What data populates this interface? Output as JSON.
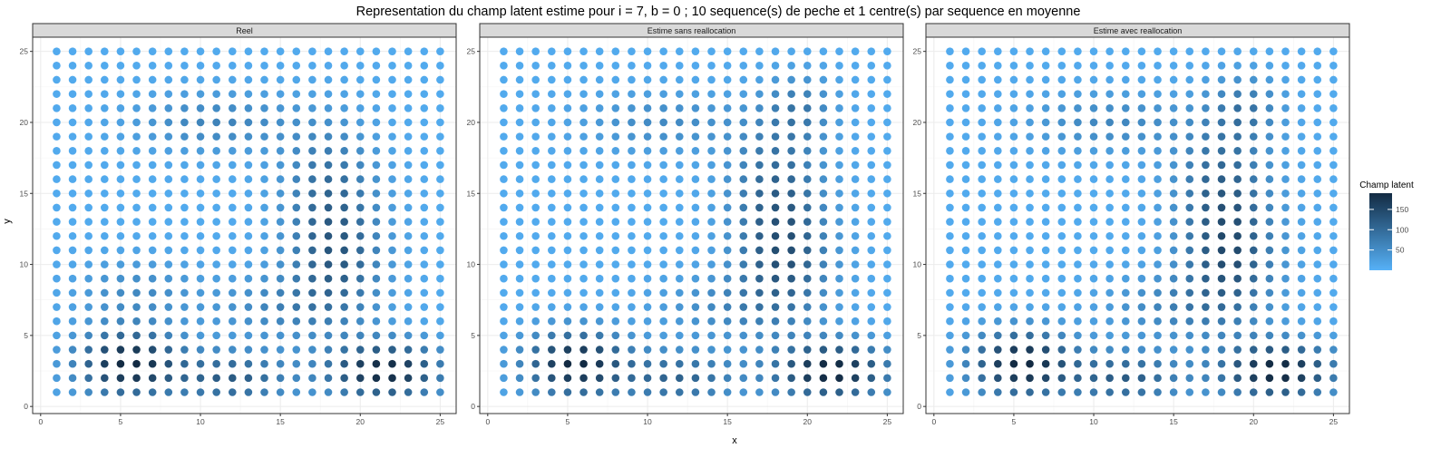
{
  "title": "Representation du champ latent estime pour i = 7, b = 0 ; 10 sequence(s) de peche et 1 centre(s) par sequence en moyenne",
  "xlabel": "x",
  "ylabel": "y",
  "legend": {
    "title": "Champ latent",
    "ticks": [
      50,
      100,
      150
    ],
    "placement": "right"
  },
  "colors": {
    "low": "#56B1F7",
    "high": "#132B43",
    "panel_bg": "#FFFFFF",
    "strip_bg": "#D9D9D9",
    "grid": "#EBEBEB"
  },
  "chart_data": {
    "type": "scatter",
    "facets": [
      "Reel",
      "Estime sans reallocation",
      "Estime avec reallocation"
    ],
    "x_range": [
      1,
      25
    ],
    "y_range": [
      1,
      25
    ],
    "xlim": [
      -0.5,
      26
    ],
    "ylim": [
      -0.5,
      26
    ],
    "x_ticks": [
      0,
      5,
      10,
      15,
      20,
      25
    ],
    "y_ticks": [
      0,
      5,
      10,
      15,
      20,
      25
    ],
    "color_scale": {
      "min": 0,
      "max": 190
    },
    "fields": [
      {
        "name": "Reel",
        "base": 10,
        "blobs": [
          {
            "cx": 5.5,
            "cy": 3,
            "sx": 2.2,
            "sy": 1.6,
            "amp": 190
          },
          {
            "cx": 21.5,
            "cy": 2.5,
            "sx": 2.5,
            "sy": 1.4,
            "amp": 185
          },
          {
            "cx": 12,
            "cy": 2,
            "sx": 2.5,
            "sy": 1.3,
            "amp": 110
          },
          {
            "cx": 18.5,
            "cy": 10.5,
            "sx": 2,
            "sy": 3,
            "amp": 105
          },
          {
            "cx": 18,
            "cy": 16,
            "sx": 2,
            "sy": 3,
            "amp": 70
          },
          {
            "cx": 11,
            "cy": 20,
            "sx": 3.5,
            "sy": 1.4,
            "amp": 55
          },
          {
            "cx": 15,
            "cy": 7,
            "sx": 3,
            "sy": 1.6,
            "amp": 50
          },
          {
            "cx": 6,
            "cy": 8,
            "sx": 2.5,
            "sy": 1.6,
            "amp": 45
          }
        ]
      },
      {
        "name": "Estime sans reallocation",
        "base": 10,
        "blobs": [
          {
            "cx": 5.5,
            "cy": 3,
            "sx": 2.2,
            "sy": 1.6,
            "amp": 185
          },
          {
            "cx": 21.5,
            "cy": 2.5,
            "sx": 2.5,
            "sy": 1.4,
            "amp": 190
          },
          {
            "cx": 12,
            "cy": 2,
            "sx": 2.5,
            "sy": 1.3,
            "amp": 100
          },
          {
            "cx": 18.5,
            "cy": 10.5,
            "sx": 2,
            "sy": 3,
            "amp": 115
          },
          {
            "cx": 18,
            "cy": 16,
            "sx": 2,
            "sy": 3,
            "amp": 80
          },
          {
            "cx": 19.5,
            "cy": 21,
            "sx": 1.5,
            "sy": 1.6,
            "amp": 60
          },
          {
            "cx": 11,
            "cy": 20,
            "sx": 3.5,
            "sy": 1.4,
            "amp": 45
          },
          {
            "cx": 15,
            "cy": 7,
            "sx": 3,
            "sy": 1.6,
            "amp": 45
          }
        ]
      },
      {
        "name": "Estime avec reallocation",
        "base": 10,
        "blobs": [
          {
            "cx": 5.5,
            "cy": 3,
            "sx": 2.2,
            "sy": 1.6,
            "amp": 190
          },
          {
            "cx": 21.5,
            "cy": 2.5,
            "sx": 2.5,
            "sy": 1.4,
            "amp": 190
          },
          {
            "cx": 12,
            "cy": 2,
            "sx": 2.5,
            "sy": 1.3,
            "amp": 110
          },
          {
            "cx": 18.5,
            "cy": 10.5,
            "sx": 2,
            "sy": 3,
            "amp": 120
          },
          {
            "cx": 18,
            "cy": 16,
            "sx": 2,
            "sy": 3,
            "amp": 85
          },
          {
            "cx": 19.5,
            "cy": 21,
            "sx": 1.5,
            "sy": 1.6,
            "amp": 65
          },
          {
            "cx": 11,
            "cy": 20,
            "sx": 3.5,
            "sy": 1.4,
            "amp": 50
          },
          {
            "cx": 15,
            "cy": 7,
            "sx": 3,
            "sy": 1.6,
            "amp": 50
          }
        ]
      }
    ]
  }
}
